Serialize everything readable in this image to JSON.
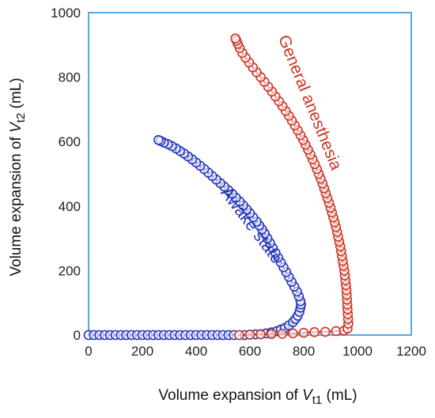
{
  "chart_data": {
    "type": "scatter",
    "xlabel": {
      "prefix": "Volume expansion of ",
      "var": "V",
      "sub": "t1",
      "suffix": " (mL)"
    },
    "ylabel": {
      "prefix": "Volume expansion of ",
      "var": "V",
      "sub": "t2",
      "suffix": " (mL)"
    },
    "xlim": [
      0,
      1200
    ],
    "ylim": [
      0,
      1000
    ],
    "xticks": [
      0,
      200,
      400,
      600,
      800,
      1000,
      1200
    ],
    "yticks": [
      0,
      200,
      400,
      600,
      800,
      1000
    ],
    "grid": false,
    "frame_color": "#5aa7e6",
    "series": [
      {
        "name": "Awake state",
        "color": "#2233bb",
        "marker": "open-circle",
        "label_rotation": 53,
        "points": [
          [
            0,
            0
          ],
          [
            20,
            0
          ],
          [
            40,
            0
          ],
          [
            60,
            0
          ],
          [
            80,
            0
          ],
          [
            100,
            0
          ],
          [
            120,
            0
          ],
          [
            140,
            0
          ],
          [
            160,
            0
          ],
          [
            180,
            0
          ],
          [
            200,
            0
          ],
          [
            220,
            0
          ],
          [
            240,
            0
          ],
          [
            260,
            0
          ],
          [
            280,
            0
          ],
          [
            300,
            0
          ],
          [
            320,
            0
          ],
          [
            340,
            0
          ],
          [
            360,
            0
          ],
          [
            380,
            0
          ],
          [
            400,
            0
          ],
          [
            420,
            0
          ],
          [
            440,
            0
          ],
          [
            460,
            0
          ],
          [
            480,
            0
          ],
          [
            500,
            0
          ],
          [
            520,
            0
          ],
          [
            540,
            0
          ],
          [
            560,
            0
          ],
          [
            580,
            0
          ],
          [
            600,
            1
          ],
          [
            620,
            2
          ],
          [
            640,
            3
          ],
          [
            660,
            5
          ],
          [
            680,
            8
          ],
          [
            700,
            12
          ],
          [
            715,
            17
          ],
          [
            730,
            22
          ],
          [
            745,
            30
          ],
          [
            760,
            40
          ],
          [
            770,
            50
          ],
          [
            778,
            60
          ],
          [
            784,
            72
          ],
          [
            788,
            85
          ],
          [
            790,
            95
          ],
          [
            788,
            105
          ],
          [
            782,
            120
          ],
          [
            775,
            135
          ],
          [
            765,
            150
          ],
          [
            755,
            165
          ],
          [
            745,
            180
          ],
          [
            735,
            195
          ],
          [
            725,
            210
          ],
          [
            715,
            225
          ],
          [
            705,
            240
          ],
          [
            695,
            255
          ],
          [
            685,
            270
          ],
          [
            675,
            285
          ],
          [
            665,
            300
          ],
          [
            655,
            315
          ],
          [
            645,
            328
          ],
          [
            635,
            340
          ],
          [
            625,
            352
          ],
          [
            612,
            365
          ],
          [
            600,
            378
          ],
          [
            588,
            390
          ],
          [
            575,
            402
          ],
          [
            562,
            414
          ],
          [
            548,
            426
          ],
          [
            534,
            438
          ],
          [
            520,
            449
          ],
          [
            505,
            460
          ],
          [
            490,
            471
          ],
          [
            475,
            482
          ],
          [
            460,
            493
          ],
          [
            445,
            504
          ],
          [
            430,
            515
          ],
          [
            415,
            525
          ],
          [
            400,
            535
          ],
          [
            385,
            545
          ],
          [
            370,
            554
          ],
          [
            355,
            563
          ],
          [
            340,
            571
          ],
          [
            325,
            579
          ],
          [
            310,
            586
          ],
          [
            295,
            592
          ],
          [
            280,
            597
          ],
          [
            268,
            602
          ],
          [
            260,
            605
          ]
        ]
      },
      {
        "name": "General anesthesia",
        "color": "#cc3322",
        "marker": "open-circle",
        "label_rotation": 68,
        "points": [
          [
            560,
            0
          ],
          [
            600,
            1
          ],
          [
            640,
            2
          ],
          [
            680,
            3
          ],
          [
            720,
            4
          ],
          [
            760,
            5
          ],
          [
            800,
            7
          ],
          [
            840,
            9
          ],
          [
            880,
            10
          ],
          [
            920,
            12
          ],
          [
            950,
            14
          ],
          [
            963,
            20
          ],
          [
            966,
            35
          ],
          [
            965,
            50
          ],
          [
            964,
            65
          ],
          [
            963,
            80
          ],
          [
            962,
            95
          ],
          [
            961,
            110
          ],
          [
            960,
            125
          ],
          [
            959,
            140
          ],
          [
            957,
            155
          ],
          [
            955,
            170
          ],
          [
            953,
            185
          ],
          [
            951,
            200
          ],
          [
            948,
            215
          ],
          [
            945,
            230
          ],
          [
            942,
            245
          ],
          [
            939,
            260
          ],
          [
            936,
            275
          ],
          [
            932,
            290
          ],
          [
            928,
            305
          ],
          [
            924,
            320
          ],
          [
            920,
            335
          ],
          [
            915,
            350
          ],
          [
            910,
            365
          ],
          [
            905,
            380
          ],
          [
            900,
            395
          ],
          [
            894,
            410
          ],
          [
            888,
            425
          ],
          [
            882,
            440
          ],
          [
            876,
            455
          ],
          [
            870,
            470
          ],
          [
            863,
            485
          ],
          [
            856,
            500
          ],
          [
            849,
            515
          ],
          [
            841,
            530
          ],
          [
            833,
            545
          ],
          [
            825,
            560
          ],
          [
            816,
            575
          ],
          [
            807,
            590
          ],
          [
            798,
            605
          ],
          [
            788,
            620
          ],
          [
            778,
            635
          ],
          [
            767,
            650
          ],
          [
            756,
            665
          ],
          [
            745,
            680
          ],
          [
            733,
            695
          ],
          [
            721,
            710
          ],
          [
            708,
            725
          ],
          [
            695,
            740
          ],
          [
            682,
            755
          ],
          [
            668,
            770
          ],
          [
            654,
            785
          ],
          [
            640,
            800
          ],
          [
            625,
            815
          ],
          [
            611,
            830
          ],
          [
            597,
            845
          ],
          [
            584,
            860
          ],
          [
            572,
            875
          ],
          [
            562,
            890
          ],
          [
            555,
            903
          ],
          [
            550,
            913
          ],
          [
            546,
            920
          ]
        ]
      }
    ]
  }
}
